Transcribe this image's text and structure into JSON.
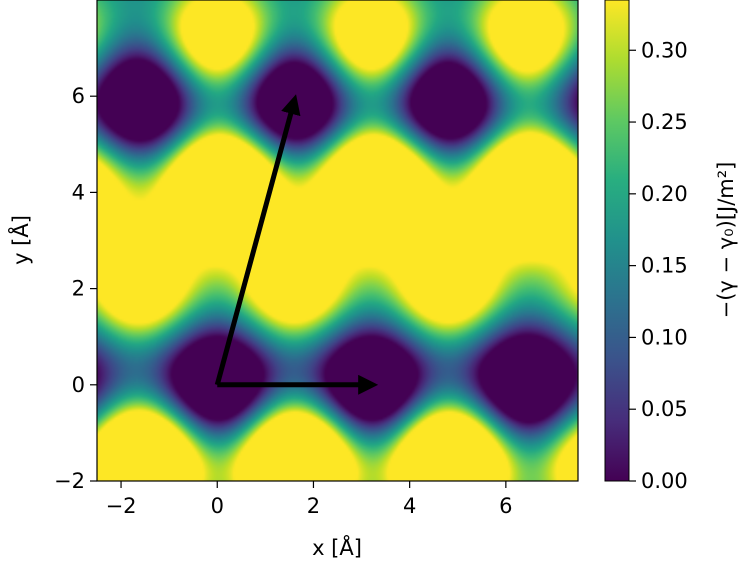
{
  "chart_data": {
    "type": "heatmap",
    "title": "",
    "xlabel": "x [Å]",
    "ylabel": "y [Å]",
    "xlim": [
      -2.5,
      7.5
    ],
    "ylim": [
      -2.0,
      8.0
    ],
    "xticks": [
      -2,
      0,
      2,
      4,
      6
    ],
    "yticks": [
      -2,
      0,
      2,
      4,
      6
    ],
    "colorbar": {
      "label": "−(γ − γ₀)[J/m²]",
      "colormap": "viridis",
      "range": [
        0.0,
        0.335
      ],
      "ticks": [
        "0.00",
        "0.05",
        "0.10",
        "0.15",
        "0.20",
        "0.25",
        "0.30"
      ],
      "tick_values": [
        0.0,
        0.05,
        0.1,
        0.15,
        0.2,
        0.25,
        0.3
      ]
    },
    "periodic_field": {
      "description": "hexagonal-like lattice of energy maxima and minima",
      "lattice_vector_a": [
        3.2,
        0.0
      ],
      "lattice_vector_b": [
        1.6,
        6.0
      ],
      "maxima_high": [
        [
          0.3,
          4.1
        ],
        [
          3.2,
          4.1
        ],
        [
          6.4,
          4.1
        ],
        [
          -1.5,
          -1.6
        ],
        [
          1.6,
          -1.6
        ],
        [
          4.8,
          -1.6
        ]
      ],
      "maxima_low": [
        [
          -1.6,
          2.1
        ],
        [
          1.6,
          2.1
        ],
        [
          4.8,
          2.1
        ],
        [
          0.0,
          7.2
        ],
        [
          3.2,
          7.2
        ],
        [
          6.4,
          7.2
        ]
      ],
      "minima": [
        [
          0.0,
          0.0
        ],
        [
          3.2,
          0.0
        ],
        [
          6.4,
          0.0
        ],
        [
          -1.6,
          5.9
        ],
        [
          1.6,
          5.9
        ],
        [
          4.8,
          5.9
        ]
      ],
      "value_high_max": 0.335,
      "value_low_max": 0.25,
      "value_min": 0.0
    },
    "arrows": [
      {
        "from": [
          0,
          0
        ],
        "to": [
          3.2,
          0.0
        ]
      },
      {
        "from": [
          0,
          0
        ],
        "to": [
          1.6,
          5.9
        ]
      }
    ],
    "grid": false
  },
  "colors": {
    "arrow": "#000000",
    "axes": "#000000",
    "background": "#ffffff"
  }
}
